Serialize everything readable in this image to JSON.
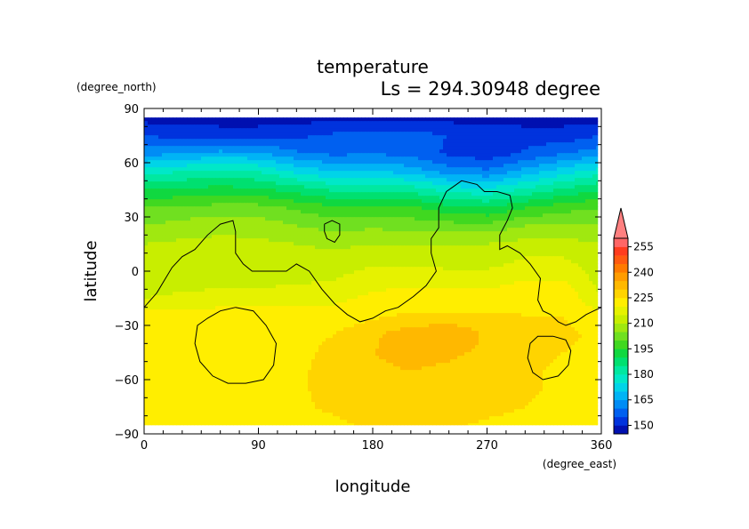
{
  "chart_data": {
    "type": "heatmap",
    "title": "temperature",
    "subtitle": "Ls = 294.30948 degree",
    "xlabel": "longitude",
    "ylabel": "latitude",
    "x_units": "(degree_east)",
    "y_units": "(degree_north)",
    "xlim": [
      0,
      360
    ],
    "ylim": [
      -90,
      90
    ],
    "x_ticks": [
      0,
      90,
      180,
      270,
      360
    ],
    "y_ticks": [
      -90,
      -60,
      -30,
      0,
      30,
      60,
      90
    ],
    "colorbar": {
      "tick_labels": [
        150,
        165,
        180,
        195,
        210,
        225,
        240,
        255
      ],
      "levels": [
        145,
        150,
        155,
        160,
        165,
        170,
        175,
        180,
        185,
        190,
        195,
        200,
        205,
        210,
        215,
        220,
        225,
        230,
        235,
        240,
        245,
        250,
        255,
        260
      ],
      "colors": [
        "#0010b0",
        "#0033dd",
        "#0060f0",
        "#008cf5",
        "#00b4f5",
        "#00d4e8",
        "#00e8c8",
        "#00e8a0",
        "#00e070",
        "#10d840",
        "#40d820",
        "#70e020",
        "#a0e810",
        "#c8ee00",
        "#e6f200",
        "#ffee00",
        "#ffd400",
        "#ffb800",
        "#ff9c00",
        "#ff7a00",
        "#ff5a10",
        "#ff3c1e",
        "#ff6666",
        "#ff8080"
      ],
      "extend": "max"
    },
    "field": [
      {
        "lat": 85,
        "temps": [
          148,
          148,
          148,
          148,
          148,
          148,
          148,
          148,
          148,
          148,
          148,
          148,
          148
        ]
      },
      {
        "lat": 75,
        "temps": [
          155,
          153,
          152,
          152,
          154,
          156,
          157,
          157,
          155,
          153,
          152,
          152,
          155
        ]
      },
      {
        "lat": 65,
        "temps": [
          163,
          165,
          167,
          166,
          161,
          159,
          160,
          158,
          154,
          152,
          156,
          160,
          163
        ]
      },
      {
        "lat": 55,
        "temps": [
          178,
          180,
          182,
          180,
          174,
          170,
          171,
          168,
          163,
          161,
          167,
          173,
          178
        ]
      },
      {
        "lat": 45,
        "temps": [
          190,
          191,
          192,
          191,
          188,
          184,
          184,
          183,
          178,
          176,
          181,
          186,
          190
        ]
      },
      {
        "lat": 35,
        "temps": [
          200,
          201,
          202,
          202,
          199,
          196,
          196,
          196,
          192,
          190,
          195,
          198,
          200
        ]
      },
      {
        "lat": 25,
        "temps": [
          205,
          207,
          209,
          208,
          205,
          203,
          204,
          203,
          202,
          202,
          205,
          206,
          205
        ]
      },
      {
        "lat": 15,
        "temps": [
          210,
          211,
          211,
          211,
          210,
          209,
          210,
          210,
          210,
          210,
          212,
          212,
          210
        ]
      },
      {
        "lat": 5,
        "temps": [
          212,
          212,
          211,
          211,
          212,
          212,
          214,
          214,
          213,
          213,
          216,
          216,
          212
        ]
      },
      {
        "lat": -5,
        "temps": [
          213,
          213,
          212,
          213,
          214,
          215,
          218,
          219,
          218,
          218,
          220,
          220,
          213
        ]
      },
      {
        "lat": -15,
        "temps": [
          215,
          216,
          218,
          218,
          218,
          219,
          221,
          222,
          222,
          222,
          224,
          224,
          215
        ]
      },
      {
        "lat": -25,
        "temps": [
          222,
          222,
          222,
          222,
          222,
          222,
          224,
          226,
          226,
          226,
          225,
          225,
          222
        ]
      },
      {
        "lat": -35,
        "temps": [
          224,
          224,
          224,
          224,
          224,
          225,
          229,
          233,
          235,
          229,
          227,
          226,
          224
        ]
      },
      {
        "lat": -45,
        "temps": [
          224,
          224,
          224,
          224,
          224,
          226,
          230,
          232,
          231,
          229,
          227,
          225,
          224
        ]
      },
      {
        "lat": -55,
        "temps": [
          223,
          223,
          223,
          223,
          224,
          227,
          229,
          230,
          229,
          228,
          226,
          224,
          223
        ]
      },
      {
        "lat": -65,
        "temps": [
          223,
          223,
          223,
          223,
          224,
          227,
          229,
          230,
          229,
          228,
          226,
          224,
          223
        ]
      },
      {
        "lat": -75,
        "temps": [
          223,
          223,
          223,
          223,
          224,
          226,
          228,
          229,
          228,
          227,
          225,
          223,
          223
        ]
      },
      {
        "lat": -85,
        "temps": [
          223,
          223,
          223,
          223,
          223,
          224,
          226,
          227,
          226,
          224,
          223,
          223,
          223
        ]
      }
    ],
    "field_lons": [
      0,
      30,
      60,
      90,
      120,
      150,
      180,
      210,
      240,
      270,
      300,
      330,
      360
    ],
    "topography_contours": [
      [
        [
          0,
          -20
        ],
        [
          10,
          -12
        ],
        [
          22,
          2
        ],
        [
          30,
          8
        ],
        [
          40,
          12
        ],
        [
          50,
          20
        ],
        [
          60,
          26
        ],
        [
          70,
          28
        ],
        [
          72,
          22
        ],
        [
          72,
          10
        ],
        [
          78,
          4
        ],
        [
          85,
          0
        ],
        [
          100,
          0
        ],
        [
          112,
          0
        ],
        [
          120,
          4
        ],
        [
          130,
          0
        ],
        [
          140,
          -10
        ],
        [
          150,
          -18
        ],
        [
          160,
          -24
        ],
        [
          170,
          -28
        ],
        [
          180,
          -26
        ],
        [
          190,
          -22
        ],
        [
          200,
          -20
        ],
        [
          212,
          -14
        ],
        [
          222,
          -8
        ],
        [
          230,
          0
        ],
        [
          226,
          10
        ],
        [
          226,
          18
        ],
        [
          232,
          24
        ],
        [
          232,
          35
        ],
        [
          238,
          44
        ],
        [
          250,
          50
        ],
        [
          262,
          48
        ],
        [
          268,
          44
        ],
        [
          278,
          44
        ],
        [
          288,
          42
        ],
        [
          290,
          35
        ],
        [
          286,
          28
        ],
        [
          280,
          20
        ],
        [
          280,
          12
        ],
        [
          286,
          14
        ],
        [
          296,
          10
        ],
        [
          304,
          4
        ],
        [
          312,
          -4
        ],
        [
          310,
          -16
        ],
        [
          314,
          -22
        ],
        [
          320,
          -24
        ],
        [
          326,
          -28
        ],
        [
          332,
          -30
        ],
        [
          340,
          -28
        ],
        [
          348,
          -24
        ],
        [
          354,
          -22
        ],
        [
          360,
          -20
        ]
      ],
      [
        [
          142,
          26
        ],
        [
          148,
          28
        ],
        [
          154,
          26
        ],
        [
          154,
          20
        ],
        [
          150,
          16
        ],
        [
          144,
          18
        ],
        [
          142,
          22
        ],
        [
          142,
          26
        ]
      ],
      [
        [
          72,
          -20
        ],
        [
          86,
          -22
        ],
        [
          96,
          -30
        ],
        [
          104,
          -40
        ],
        [
          102,
          -52
        ],
        [
          94,
          -60
        ],
        [
          80,
          -62
        ],
        [
          66,
          -62
        ],
        [
          54,
          -58
        ],
        [
          44,
          -50
        ],
        [
          40,
          -40
        ],
        [
          42,
          -30
        ],
        [
          50,
          -26
        ],
        [
          60,
          -22
        ],
        [
          72,
          -20
        ]
      ],
      [
        [
          322,
          -36
        ],
        [
          332,
          -38
        ],
        [
          336,
          -44
        ],
        [
          334,
          -52
        ],
        [
          326,
          -58
        ],
        [
          314,
          -60
        ],
        [
          306,
          -56
        ],
        [
          302,
          -48
        ],
        [
          304,
          -40
        ],
        [
          310,
          -36
        ],
        [
          322,
          -36
        ]
      ]
    ]
  }
}
